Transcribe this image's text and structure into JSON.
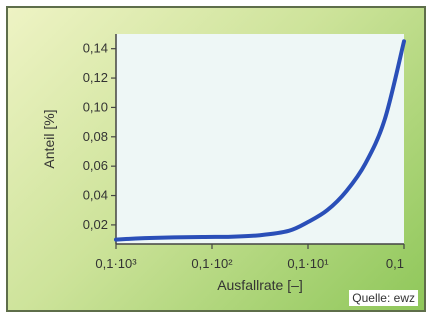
{
  "chart_data": {
    "type": "line",
    "xlabel": "Ausfallrate [–]",
    "ylabel": "Anteil [%]",
    "x_tick_labels": [
      "0,1·10³",
      "0,1·10²",
      "0,1·10¹",
      "0,1"
    ],
    "y_ticks": [
      0.02,
      0.04,
      0.06,
      0.08,
      0.1,
      0.12,
      0.14
    ],
    "y_tick_labels": [
      "0,02",
      "0,04",
      "0,06",
      "0,08",
      "0,10",
      "0,12",
      "0,14"
    ],
    "ylim": [
      0.007,
      0.15
    ],
    "xlim": [
      0,
      3
    ],
    "series": [
      {
        "x": [
          0,
          0.3,
          0.6,
          0.9,
          1.2,
          1.5,
          1.8,
          2.0,
          2.2,
          2.4,
          2.6,
          2.8,
          3.0
        ],
        "y": [
          0.01,
          0.011,
          0.0115,
          0.0118,
          0.012,
          0.013,
          0.016,
          0.022,
          0.03,
          0.043,
          0.062,
          0.092,
          0.145
        ]
      }
    ],
    "grid": false,
    "colors": {
      "line": "#2a4fb8",
      "plot_bg": "#eef7f6",
      "axis": "#444444"
    }
  },
  "source_note": "Quelle: ewz"
}
